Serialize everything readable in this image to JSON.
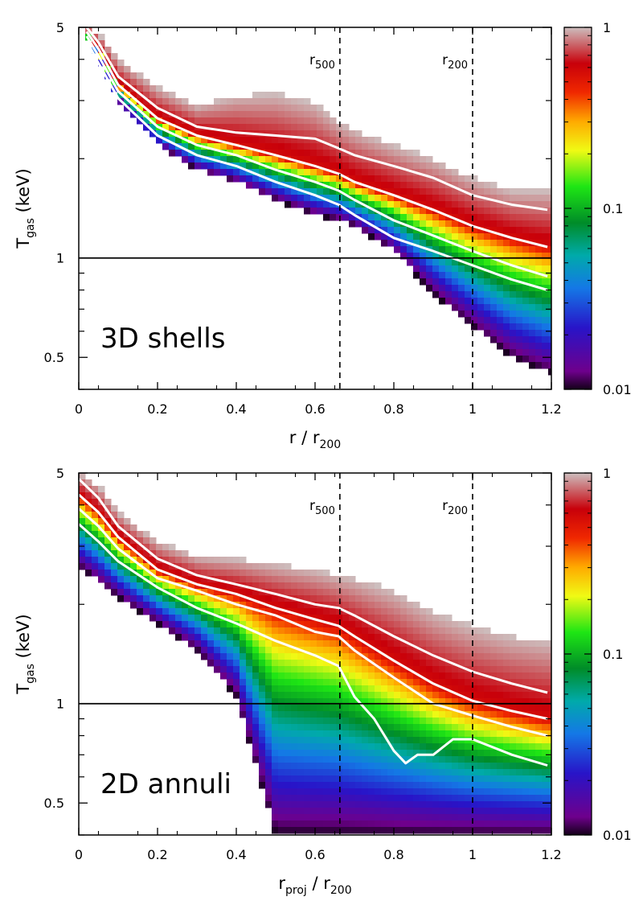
{
  "chart_data": [
    {
      "type": "heatmap",
      "panel_label": "3D shells",
      "xlabel": {
        "main": "r / r",
        "sub": "200"
      },
      "ylabel": {
        "main": "T",
        "sub": "gas",
        "tail": " (keV)"
      },
      "xlim": [
        0,
        1.2
      ],
      "ylim": [
        0.4,
        5
      ],
      "y_scale": "log",
      "x_ticks": [
        0,
        0.2,
        0.4,
        0.6,
        0.8,
        1,
        1.2
      ],
      "x_tick_labels": [
        "0",
        "0.2",
        "0.4",
        "0.6",
        "0.8",
        "1",
        "1.2"
      ],
      "y_ticks": [
        0.5,
        1,
        5
      ],
      "y_tick_labels": [
        "0.5",
        "1",
        "5"
      ],
      "hline": 1,
      "reference_lines": [
        {
          "x": 0.663,
          "label": "r",
          "sub": "500"
        },
        {
          "x": 1.0,
          "label": "r",
          "sub": "200"
        }
      ],
      "colorbar": {
        "min": 0.01,
        "max": 1,
        "scale": "log",
        "labels": [
          "1",
          "0.1",
          "0.01"
        ]
      },
      "band_edges": {
        "x": [
          0.02,
          0.05,
          0.1,
          0.2,
          0.3,
          0.4,
          0.5,
          0.6,
          0.66,
          0.7,
          0.8,
          0.9,
          1.0,
          1.1,
          1.19
        ],
        "upper": [
          5.0,
          4.8,
          4.0,
          3.3,
          2.9,
          3.1,
          3.15,
          2.95,
          2.6,
          2.45,
          2.2,
          2.0,
          1.75,
          1.6,
          1.6
        ],
        "lower": [
          4.6,
          4.0,
          3.0,
          2.2,
          1.85,
          1.7,
          1.5,
          1.35,
          1.3,
          1.25,
          1.05,
          0.78,
          0.62,
          0.5,
          0.45
        ]
      },
      "series": [
        {
          "name": "upper percentile",
          "x": [
            0.02,
            0.05,
            0.1,
            0.2,
            0.3,
            0.4,
            0.5,
            0.6,
            0.66,
            0.7,
            0.8,
            0.9,
            1.0,
            1.1,
            1.19
          ],
          "values": [
            5.0,
            4.5,
            3.55,
            2.85,
            2.5,
            2.4,
            2.35,
            2.3,
            2.15,
            2.05,
            1.9,
            1.75,
            1.55,
            1.45,
            1.4
          ]
        },
        {
          "name": "median",
          "x": [
            0.02,
            0.05,
            0.1,
            0.2,
            0.3,
            0.4,
            0.5,
            0.6,
            0.66,
            0.7,
            0.8,
            0.9,
            1.0,
            1.1,
            1.19
          ],
          "values": [
            4.85,
            4.3,
            3.35,
            2.65,
            2.35,
            2.2,
            2.05,
            1.9,
            1.8,
            1.7,
            1.55,
            1.4,
            1.25,
            1.15,
            1.08
          ]
        },
        {
          "name": "lower percentile",
          "x": [
            0.02,
            0.05,
            0.1,
            0.2,
            0.3,
            0.4,
            0.5,
            0.6,
            0.66,
            0.7,
            0.8,
            0.9,
            1.0,
            1.1,
            1.19
          ],
          "values": [
            4.7,
            4.1,
            3.2,
            2.5,
            2.2,
            2.05,
            1.85,
            1.7,
            1.6,
            1.5,
            1.3,
            1.17,
            1.05,
            0.95,
            0.88
          ]
        },
        {
          "name": "lowest percentile",
          "x": [
            0.02,
            0.05,
            0.1,
            0.2,
            0.3,
            0.4,
            0.5,
            0.6,
            0.66,
            0.7,
            0.8,
            0.9,
            1.0,
            1.1,
            1.19
          ],
          "values": [
            4.55,
            3.9,
            3.05,
            2.35,
            2.05,
            1.9,
            1.7,
            1.55,
            1.45,
            1.35,
            1.15,
            1.05,
            0.95,
            0.86,
            0.8
          ]
        }
      ]
    },
    {
      "type": "heatmap",
      "panel_label": "2D annuli",
      "xlabel": {
        "main": "r",
        "sub": "proj",
        "mid": " / r",
        "sub2": "200"
      },
      "ylabel": {
        "main": "T",
        "sub": "gas",
        "tail": " (keV)"
      },
      "xlim": [
        0,
        1.2
      ],
      "ylim": [
        0.4,
        5
      ],
      "y_scale": "log",
      "x_ticks": [
        0,
        0.2,
        0.4,
        0.6,
        0.8,
        1,
        1.2
      ],
      "x_tick_labels": [
        "0",
        "0.2",
        "0.4",
        "0.6",
        "0.8",
        "1",
        "1.2"
      ],
      "y_ticks": [
        0.5,
        1,
        5
      ],
      "y_tick_labels": [
        "0.5",
        "1",
        "5"
      ],
      "hline": 1,
      "reference_lines": [
        {
          "x": 0.663,
          "label": "r",
          "sub": "500"
        },
        {
          "x": 1.0,
          "label": "r",
          "sub": "200"
        }
      ],
      "colorbar": {
        "min": 0.01,
        "max": 1,
        "scale": "log",
        "labels": [
          "1",
          "0.1",
          "0.01"
        ]
      },
      "band_edges": {
        "x": [
          0.0,
          0.05,
          0.1,
          0.2,
          0.3,
          0.4,
          0.5,
          0.6,
          0.66,
          0.7,
          0.8,
          0.9,
          1.0,
          1.1,
          1.19
        ],
        "upper": [
          5.0,
          4.6,
          3.8,
          3.1,
          2.8,
          2.75,
          2.65,
          2.55,
          2.45,
          2.4,
          2.2,
          1.9,
          1.72,
          1.6,
          1.55
        ],
        "lower": [
          2.6,
          2.35,
          2.1,
          1.75,
          1.45,
          1.05,
          0.4,
          0.4,
          0.4,
          0.4,
          0.4,
          0.4,
          0.4,
          0.4,
          0.4
        ]
      },
      "series": [
        {
          "name": "upper percentile",
          "x": [
            0.0,
            0.05,
            0.1,
            0.2,
            0.3,
            0.4,
            0.5,
            0.6,
            0.66,
            0.7,
            0.8,
            0.9,
            1.0,
            1.1,
            1.19
          ],
          "values": [
            4.8,
            4.2,
            3.45,
            2.75,
            2.45,
            2.3,
            2.15,
            2.0,
            1.95,
            1.85,
            1.6,
            1.4,
            1.25,
            1.15,
            1.08
          ]
        },
        {
          "name": "median",
          "x": [
            0.0,
            0.05,
            0.1,
            0.2,
            0.3,
            0.4,
            0.5,
            0.6,
            0.66,
            0.7,
            0.8,
            0.9,
            1.0,
            1.1,
            1.19
          ],
          "values": [
            4.3,
            3.8,
            3.2,
            2.55,
            2.3,
            2.15,
            1.95,
            1.8,
            1.72,
            1.6,
            1.35,
            1.15,
            1.02,
            0.95,
            0.9
          ]
        },
        {
          "name": "lower percentile",
          "x": [
            0.0,
            0.05,
            0.1,
            0.2,
            0.3,
            0.4,
            0.5,
            0.6,
            0.66,
            0.7,
            0.8,
            0.9,
            1.0,
            1.1,
            1.19
          ],
          "values": [
            3.9,
            3.45,
            2.95,
            2.4,
            2.2,
            2.0,
            1.85,
            1.65,
            1.6,
            1.45,
            1.2,
            1.0,
            0.92,
            0.85,
            0.8
          ]
        },
        {
          "name": "lowest percentile",
          "x": [
            0.0,
            0.05,
            0.1,
            0.2,
            0.3,
            0.4,
            0.5,
            0.6,
            0.66,
            0.7,
            0.75,
            0.8,
            0.83,
            0.86,
            0.9,
            0.95,
            1.0,
            1.1,
            1.19
          ],
          "values": [
            3.5,
            3.1,
            2.7,
            2.25,
            1.95,
            1.75,
            1.55,
            1.4,
            1.3,
            1.05,
            0.9,
            0.72,
            0.66,
            0.7,
            0.7,
            0.78,
            0.78,
            0.7,
            0.65
          ]
        }
      ]
    }
  ]
}
